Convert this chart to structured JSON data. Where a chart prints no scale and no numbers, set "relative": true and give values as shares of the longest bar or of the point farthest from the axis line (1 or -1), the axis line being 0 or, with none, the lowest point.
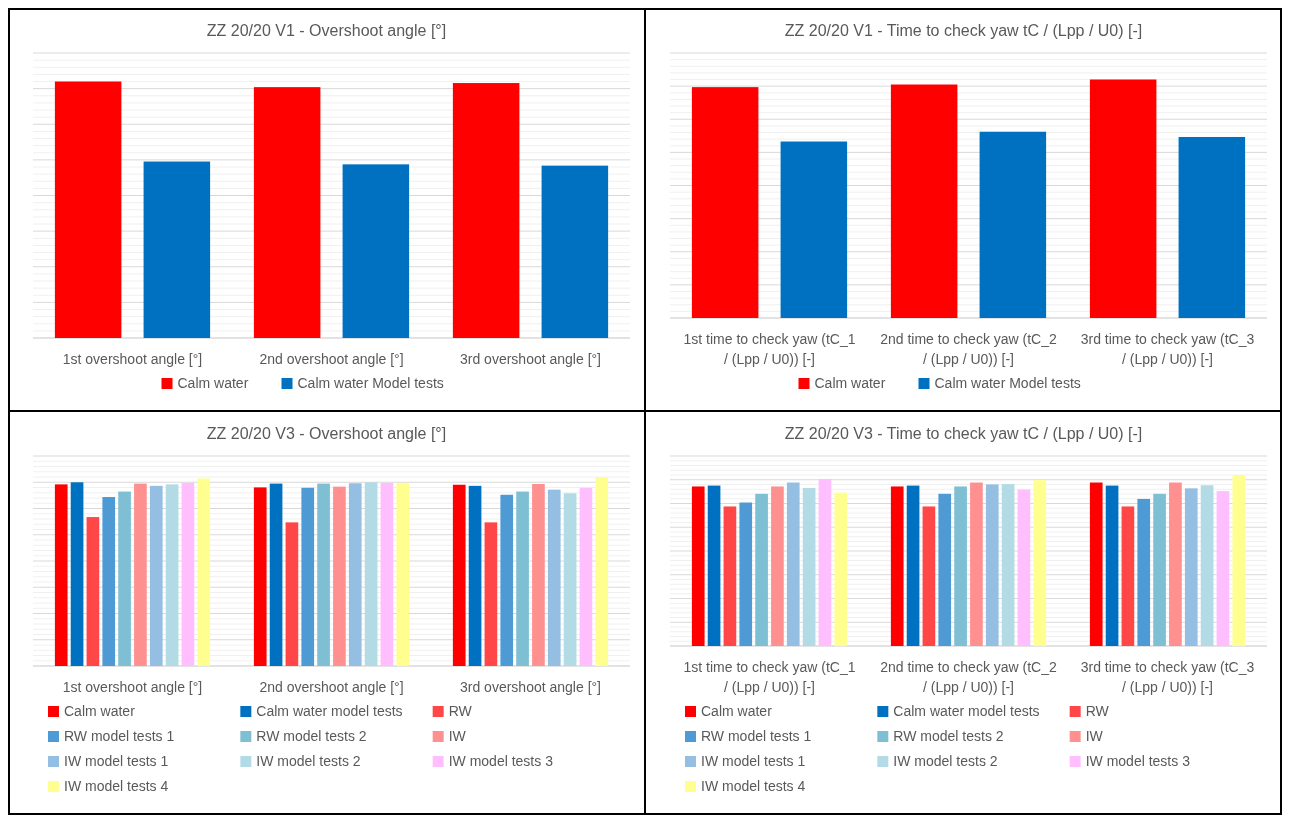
{
  "chart_data": [
    {
      "type": "bar",
      "title": "ZZ 20/20 V1 - Overshoot angle [°]",
      "relative": true,
      "grid": "y",
      "legend": "bottom",
      "categories": [
        "1st overshoot angle [°]",
        "2nd overshoot angle [°]",
        "3rd overshoot angle [°]"
      ],
      "series": [
        {
          "name": "Calm water",
          "color": "#ff0000",
          "values": [
            1,
            0.978,
            0.994
          ]
        },
        {
          "name": "Calm water Model tests",
          "color": "#0070c0",
          "values": [
            0.688,
            0.677,
            0.672
          ]
        }
      ]
    },
    {
      "type": "bar",
      "title": "ZZ 20/20 V1 - Time to check yaw tC / (Lpp / U0) [-]",
      "relative": true,
      "grid": "y",
      "legend": "bottom",
      "categories": [
        "1st time to check yaw (tC_1 / (Lpp / U0)) [-]",
        "2nd time to check yaw (tC_2 / (Lpp / U0)) [-]",
        "3rd time to check yaw (tC_3 / (Lpp / U0)) [-]"
      ],
      "series": [
        {
          "name": "Calm water",
          "color": "#ff0000",
          "values": [
            0.968,
            0.979,
            1
          ]
        },
        {
          "name": "Calm water Model tests",
          "color": "#0070c0",
          "values": [
            0.74,
            0.781,
            0.759
          ]
        }
      ]
    },
    {
      "type": "bar",
      "title": "ZZ 20/20 V3 - Overshoot angle [°]",
      "relative": true,
      "grid": "y",
      "legend": "bottom",
      "categories": [
        "1st overshoot angle [°]",
        "2nd overshoot angle [°]",
        "3rd overshoot angle [°]"
      ],
      "series": [
        {
          "name": "Calm water",
          "color": "#ff0000",
          "values": [
            0.961,
            0.945,
            0.959
          ]
        },
        {
          "name": "Calm water model tests",
          "color": "#0070c0",
          "values": [
            0.972,
            0.965,
            0.953
          ]
        },
        {
          "name": "RW",
          "color": "#ff4747",
          "values": [
            0.788,
            0.76,
            0.76
          ]
        },
        {
          "name": "RW model tests 1",
          "color": "#4d9ad4",
          "values": [
            0.894,
            0.943,
            0.906
          ]
        },
        {
          "name": "RW model tests 2",
          "color": "#7fbfd4",
          "values": [
            0.923,
            0.965,
            0.923
          ]
        },
        {
          "name": "IW",
          "color": "#ff9090",
          "values": [
            0.965,
            0.949,
            0.963
          ]
        },
        {
          "name": "IW model tests 1",
          "color": "#94bfe3",
          "values": [
            0.953,
            0.967,
            0.933
          ]
        },
        {
          "name": "IW model tests 2",
          "color": "#b3dbe6",
          "values": [
            0.961,
            0.972,
            0.914
          ]
        },
        {
          "name": "IW model tests 3",
          "color": "#ffbfff",
          "values": [
            0.969,
            0.969,
            0.943
          ]
        },
        {
          "name": "IW model tests 4",
          "color": "#ffff90",
          "values": [
            0.992,
            0.969,
            1
          ]
        }
      ]
    },
    {
      "type": "bar",
      "title": "ZZ 20/20 V3 - Time to check yaw tC / (Lpp / U0) [-]",
      "relative": true,
      "grid": "y",
      "legend": "bottom",
      "categories": [
        "1st time to check yaw (tC_1 / (Lpp / U0)) [-]",
        "2nd time to check yaw (tC_2 / (Lpp / U0)) [-]",
        "3rd time to check yaw (tC_3 / (Lpp / U0)) [-]"
      ],
      "series": [
        {
          "name": "Calm water",
          "color": "#ff0000",
          "values": [
            0.933,
            0.933,
            0.956
          ]
        },
        {
          "name": "Calm water model tests",
          "color": "#0070c0",
          "values": [
            0.938,
            0.938,
            0.938
          ]
        },
        {
          "name": "RW",
          "color": "#ff4747",
          "values": [
            0.816,
            0.816,
            0.816
          ]
        },
        {
          "name": "RW model tests 1",
          "color": "#4d9ad4",
          "values": [
            0.839,
            0.89,
            0.86
          ]
        },
        {
          "name": "RW model tests 2",
          "color": "#7fbfd4",
          "values": [
            0.89,
            0.933,
            0.89
          ]
        },
        {
          "name": "IW",
          "color": "#ff9090",
          "values": [
            0.933,
            0.956,
            0.956
          ]
        },
        {
          "name": "IW model tests 1",
          "color": "#94bfe3",
          "values": [
            0.956,
            0.945,
            0.922
          ]
        },
        {
          "name": "IW model tests 2",
          "color": "#b3dbe6",
          "values": [
            0.924,
            0.947,
            0.94
          ]
        },
        {
          "name": "IW model tests 3",
          "color": "#ffbfff",
          "values": [
            0.977,
            0.915,
            0.906
          ]
        },
        {
          "name": "IW model tests 4",
          "color": "#ffff90",
          "values": [
            0.897,
            0.97,
            1
          ]
        }
      ]
    }
  ]
}
